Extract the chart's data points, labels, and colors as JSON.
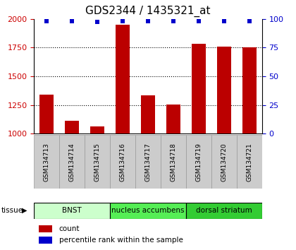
{
  "title": "GDS2344 / 1435321_at",
  "samples": [
    "GSM134713",
    "GSM134714",
    "GSM134715",
    "GSM134716",
    "GSM134717",
    "GSM134718",
    "GSM134719",
    "GSM134720",
    "GSM134721"
  ],
  "counts": [
    1340,
    1110,
    1065,
    1950,
    1335,
    1255,
    1780,
    1760,
    1750
  ],
  "percentiles": [
    98,
    98,
    97,
    98,
    98,
    98,
    98,
    98,
    98
  ],
  "ylim_left": [
    1000,
    2000
  ],
  "ylim_right": [
    0,
    100
  ],
  "yticks_left": [
    1000,
    1250,
    1500,
    1750,
    2000
  ],
  "yticks_right": [
    0,
    25,
    50,
    75,
    100
  ],
  "bar_color": "#bb0000",
  "dot_color": "#0000cc",
  "tissue_groups": [
    {
      "label": "BNST",
      "start": 0,
      "end": 3,
      "color": "#ccffcc"
    },
    {
      "label": "nucleus accumbens",
      "start": 3,
      "end": 6,
      "color": "#55ee55"
    },
    {
      "label": "dorsal striatum",
      "start": 6,
      "end": 9,
      "color": "#33cc33"
    }
  ],
  "left_tick_color": "#cc0000",
  "right_tick_color": "#0000cc",
  "bar_width": 0.55,
  "sample_box_color": "#cccccc",
  "sample_box_edge": "#999999",
  "title_fontsize": 11
}
